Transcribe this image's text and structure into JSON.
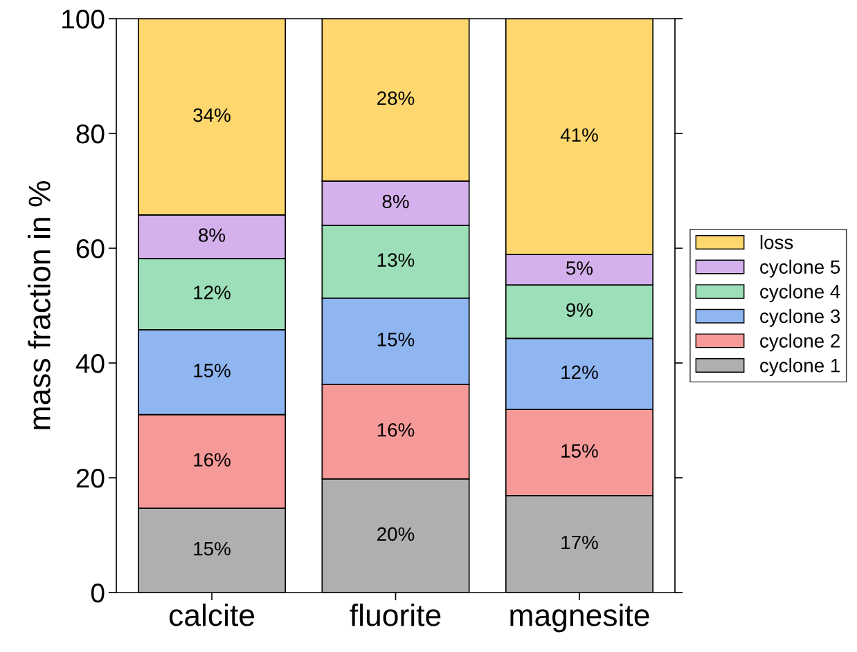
{
  "chart_data": {
    "type": "bar",
    "stacked": true,
    "ylabel": "mass fraction in %",
    "categories": [
      "calcite",
      "fluorite",
      "magnesite"
    ],
    "series": [
      {
        "name": "cyclone 1",
        "color": "#afafaf",
        "values": [
          14.7,
          19.8,
          16.9
        ],
        "value_labels": [
          "15%",
          "20%",
          "17%"
        ]
      },
      {
        "name": "cyclone 2",
        "color": "#f59a98",
        "values": [
          16.3,
          16.5,
          15.0
        ],
        "value_labels": [
          "16%",
          "16%",
          "15%"
        ]
      },
      {
        "name": "cyclone 3",
        "color": "#8fb6f0",
        "values": [
          14.8,
          15.0,
          12.4
        ],
        "value_labels": [
          "15%",
          "15%",
          "12%"
        ]
      },
      {
        "name": "cyclone 4",
        "color": "#9ddfb8",
        "values": [
          12.4,
          12.7,
          9.3
        ],
        "value_labels": [
          "12%",
          "13%",
          "9%"
        ]
      },
      {
        "name": "cyclone 5",
        "color": "#d4b1ec",
        "values": [
          7.6,
          7.7,
          5.3
        ],
        "value_labels": [
          "8%",
          "8%",
          "5%"
        ]
      },
      {
        "name": "loss",
        "color": "#fed86f",
        "values": [
          34.2,
          28.3,
          41.1
        ],
        "value_labels": [
          "34%",
          "28%",
          "41%"
        ]
      }
    ],
    "ylim": [
      0,
      100
    ],
    "yticks": [
      0,
      20,
      40,
      60,
      80,
      100
    ],
    "grid": false,
    "legend": "right"
  }
}
